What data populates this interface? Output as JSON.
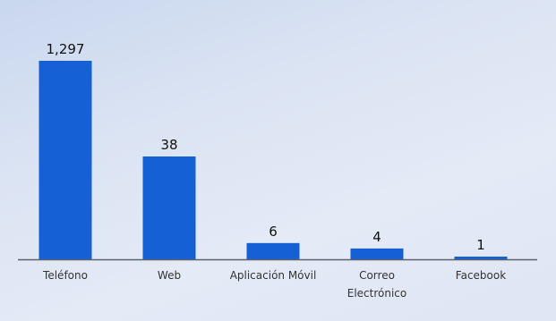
{
  "chart_data": {
    "type": "bar",
    "categories": [
      [
        "Teléfono"
      ],
      [
        "Web"
      ],
      [
        "Aplicación Móvil"
      ],
      [
        "Correo",
        "Electrónico"
      ],
      [
        "Facebook"
      ]
    ],
    "values": [
      1297,
      38,
      6,
      4,
      1
    ],
    "value_labels": [
      "1,297",
      "38",
      "6",
      "4",
      "1"
    ],
    "title": "",
    "xlabel": "",
    "ylabel": "",
    "grid": false,
    "legend": "none",
    "colors": {
      "bar": "#1560d4",
      "baseline": "#5a6270",
      "text": "#111111",
      "category_text": "#333333"
    }
  }
}
